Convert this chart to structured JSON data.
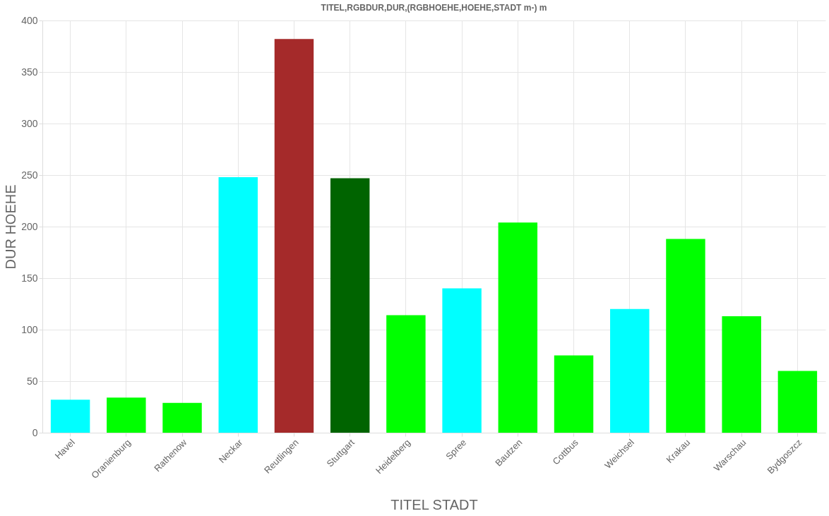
{
  "chart_data": {
    "type": "bar",
    "title": "TITEL,RGBDUR,DUR,(RGBHOEHE,HOEHE,STADT m-) m",
    "xlabel": "TITEL   STADT",
    "ylabel": "DUR   HOEHE",
    "categories": [
      "Havel",
      "Oranienburg",
      "Rathenow",
      "Neckar",
      "Reutlingen",
      "Stuttgart",
      "Heidelberg",
      "Spree",
      "Bautzen",
      "Cottbus",
      "Weichsel",
      "Krakau",
      "Warschau",
      "Bydgoszcz"
    ],
    "values": [
      32,
      34,
      29,
      248,
      382,
      247,
      114,
      140,
      204,
      75,
      120,
      188,
      113,
      60
    ],
    "colors": [
      "#00ffff",
      "#00ff00",
      "#00ff00",
      "#00ffff",
      "#a52a2a",
      "#006400",
      "#00ff00",
      "#00ffff",
      "#00ff00",
      "#00ff00",
      "#00ffff",
      "#00ff00",
      "#00ff00",
      "#00ff00"
    ],
    "ylim": [
      0,
      400
    ],
    "yticks": [
      0,
      50,
      100,
      150,
      200,
      250,
      300,
      350,
      400
    ],
    "grid": true,
    "legend": false
  }
}
